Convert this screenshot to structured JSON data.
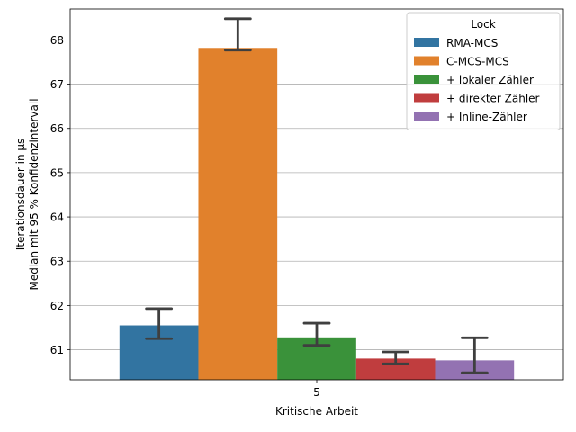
{
  "chart_data": {
    "type": "bar",
    "categories": [
      "5"
    ],
    "xlabel": "Kritische Arbeit",
    "ylabel_lines": [
      "Iterationsdauer in µs",
      "Median mit 95 % Konfidenzintervall"
    ],
    "ylim": [
      60.32,
      68.7
    ],
    "yticks": [
      61,
      62,
      63,
      64,
      65,
      66,
      67,
      68
    ],
    "grid": "horizontal",
    "legend": {
      "title": "Lock",
      "placement": "top-right"
    },
    "series": [
      {
        "name": "RMA-MCS",
        "color": "#3274a1",
        "values": [
          61.55
        ],
        "ci": [
          [
            61.25,
            61.93
          ]
        ]
      },
      {
        "name": "C-MCS-MCS",
        "color": "#e1812c",
        "values": [
          67.82
        ],
        "ci": [
          [
            67.77,
            68.48
          ]
        ]
      },
      {
        "name": "+ lokaler Zähler",
        "color": "#3a923a",
        "values": [
          61.28
        ],
        "ci": [
          [
            61.1,
            61.6
          ]
        ]
      },
      {
        "name": "+ direkter Zähler",
        "color": "#c03d3e",
        "values": [
          60.8
        ],
        "ci": [
          [
            60.68,
            60.95
          ]
        ]
      },
      {
        "name": "+ Inline-Zähler",
        "color": "#9372b2",
        "values": [
          60.76
        ],
        "ci": [
          [
            60.48,
            61.27
          ]
        ]
      }
    ]
  }
}
